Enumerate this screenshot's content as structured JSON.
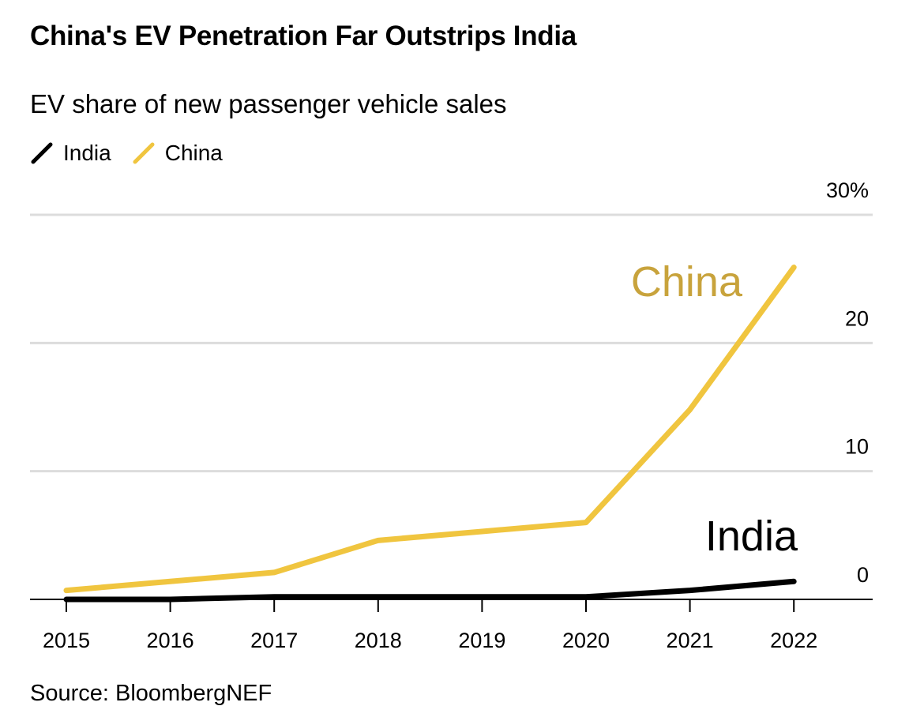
{
  "chart_data": {
    "type": "line",
    "title": "China's EV Penetration Far Outstrips India",
    "subtitle": "EV share of new passenger vehicle sales",
    "source": "Source: BloombergNEF",
    "x": [
      "2015",
      "2016",
      "2017",
      "2018",
      "2019",
      "2020",
      "2021",
      "2022"
    ],
    "series": [
      {
        "name": "India",
        "color": "#000000",
        "label_color": "#000000",
        "values": [
          0.0,
          0.0,
          0.2,
          0.2,
          0.2,
          0.2,
          0.7,
          1.4
        ]
      },
      {
        "name": "China",
        "color": "#f0c53f",
        "label_color": "#c8a33c",
        "values": [
          0.7,
          1.4,
          2.1,
          4.6,
          5.3,
          6.0,
          14.8,
          25.9
        ]
      }
    ],
    "yticks": [
      "0",
      "10",
      "20",
      "30%"
    ],
    "ytick_values": [
      0,
      10,
      20,
      30
    ],
    "ylim": [
      0,
      30
    ],
    "grid": true,
    "legend": "top-left",
    "y_axis_side": "right"
  }
}
